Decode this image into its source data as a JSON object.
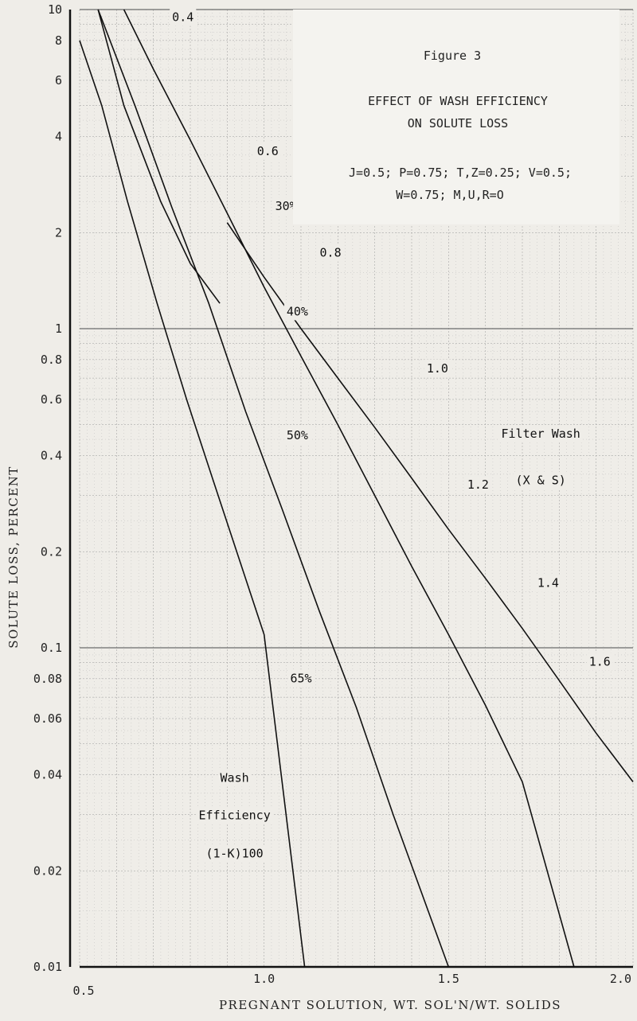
{
  "chart_data": {
    "type": "line",
    "figure_label": "Figure 3",
    "title": "EFFECT OF WASH EFFICIENCY",
    "title_line2": "ON SOLUTE LOSS",
    "params_line1": "J=0.5; P=0.75; T,Z=0.25; V=0.5;",
    "params_line2": "W=0.75; M,U,R=O",
    "xlabel": "PREGNANT SOLUTION, WT. SOL'N/WT. SOLIDS",
    "ylabel": "SOLUTE LOSS, PERCENT",
    "x_scale": "linear",
    "y_scale": "log",
    "xlim": [
      0.5,
      2.0
    ],
    "ylim": [
      0.01,
      10
    ],
    "x_ticks": [
      "0.5",
      "1.0",
      "1.5",
      "2.0"
    ],
    "x_tick_values": [
      0.5,
      1.0,
      1.5,
      2.0
    ],
    "y_ticks": [
      "10",
      "8",
      "6",
      "4",
      "2",
      "1",
      "0.8",
      "0.6",
      "0.4",
      "0.2",
      "0.1",
      "0.08",
      "0.06",
      "0.04",
      "0.02",
      "0.01"
    ],
    "y_tick_values": [
      10,
      8,
      6,
      4,
      2,
      1,
      0.8,
      0.6,
      0.4,
      0.2,
      0.1,
      0.08,
      0.06,
      0.04,
      0.02,
      0.01
    ],
    "grid": true,
    "series": [
      {
        "name": "30%",
        "x": [
          0.55,
          0.62,
          0.72,
          0.8,
          0.88
        ],
        "y": [
          10,
          5.0,
          2.5,
          1.6,
          1.2
        ]
      },
      {
        "name": "40%",
        "x": [
          0.5,
          0.56,
          0.63,
          0.71,
          0.79,
          0.86,
          1.0,
          1.11
        ],
        "y": [
          8.0,
          5.0,
          2.5,
          1.2,
          0.6,
          0.34,
          0.11,
          0.01
        ]
      },
      {
        "name": "50%",
        "x": [
          0.55,
          0.65,
          0.75,
          0.85,
          0.95,
          1.05,
          1.15,
          1.25,
          1.35,
          1.5
        ],
        "y": [
          10,
          5.0,
          2.4,
          1.2,
          0.55,
          0.27,
          0.13,
          0.065,
          0.03,
          0.01
        ]
      },
      {
        "name": "65%",
        "x": [
          0.62,
          0.7,
          0.8,
          0.9,
          1.0,
          1.1,
          1.2,
          1.3,
          1.4,
          1.5,
          1.6,
          1.7,
          1.84
        ],
        "y": [
          10,
          6.5,
          3.9,
          2.3,
          1.35,
          0.82,
          0.5,
          0.3,
          0.18,
          0.11,
          0.066,
          0.038,
          0.01
        ]
      },
      {
        "name": "Filter Wash (X & S)",
        "x": [
          0.9,
          1.0,
          1.1,
          1.2,
          1.3,
          1.4,
          1.5,
          1.6,
          1.7,
          1.8,
          1.9,
          2.0
        ],
        "y": [
          2.15,
          1.45,
          1.0,
          0.7,
          0.49,
          0.34,
          0.235,
          0.165,
          0.115,
          0.079,
          0.054,
          0.038
        ]
      }
    ],
    "annotations": [
      {
        "text": "0.4",
        "x": 0.78,
        "y": 9.2,
        "anchor": "middle"
      },
      {
        "text": "0.6",
        "x": 1.01,
        "y": 3.5,
        "anchor": "middle"
      },
      {
        "text": "30%",
        "x": 1.03,
        "y": 2.35,
        "anchor": "start"
      },
      {
        "text": "0.8",
        "x": 1.18,
        "y": 1.68,
        "anchor": "middle"
      },
      {
        "text": "40%",
        "x": 1.09,
        "y": 1.1,
        "anchor": "middle"
      },
      {
        "text": "1.0",
        "x": 1.47,
        "y": 0.73,
        "anchor": "middle"
      },
      {
        "text": "50%",
        "x": 1.09,
        "y": 0.45,
        "anchor": "middle"
      },
      {
        "text": "1.2",
        "x": 1.58,
        "y": 0.315,
        "anchor": "middle"
      },
      {
        "text": "Filter Wash",
        "x": 1.75,
        "y": 0.455,
        "anchor": "middle"
      },
      {
        "text": "(X & S)",
        "x": 1.75,
        "y": 0.325,
        "anchor": "middle"
      },
      {
        "text": "1.4",
        "x": 1.77,
        "y": 0.155,
        "anchor": "middle"
      },
      {
        "text": "65%",
        "x": 1.1,
        "y": 0.078,
        "anchor": "middle"
      },
      {
        "text": "1.6",
        "x": 1.91,
        "y": 0.088,
        "anchor": "middle"
      },
      {
        "text": "Wash",
        "x": 0.92,
        "y": 0.038,
        "anchor": "middle"
      },
      {
        "text": "Efficiency",
        "x": 0.92,
        "y": 0.029,
        "anchor": "middle"
      },
      {
        "text": "(1-K)100",
        "x": 0.92,
        "y": 0.022,
        "anchor": "middle"
      }
    ]
  }
}
